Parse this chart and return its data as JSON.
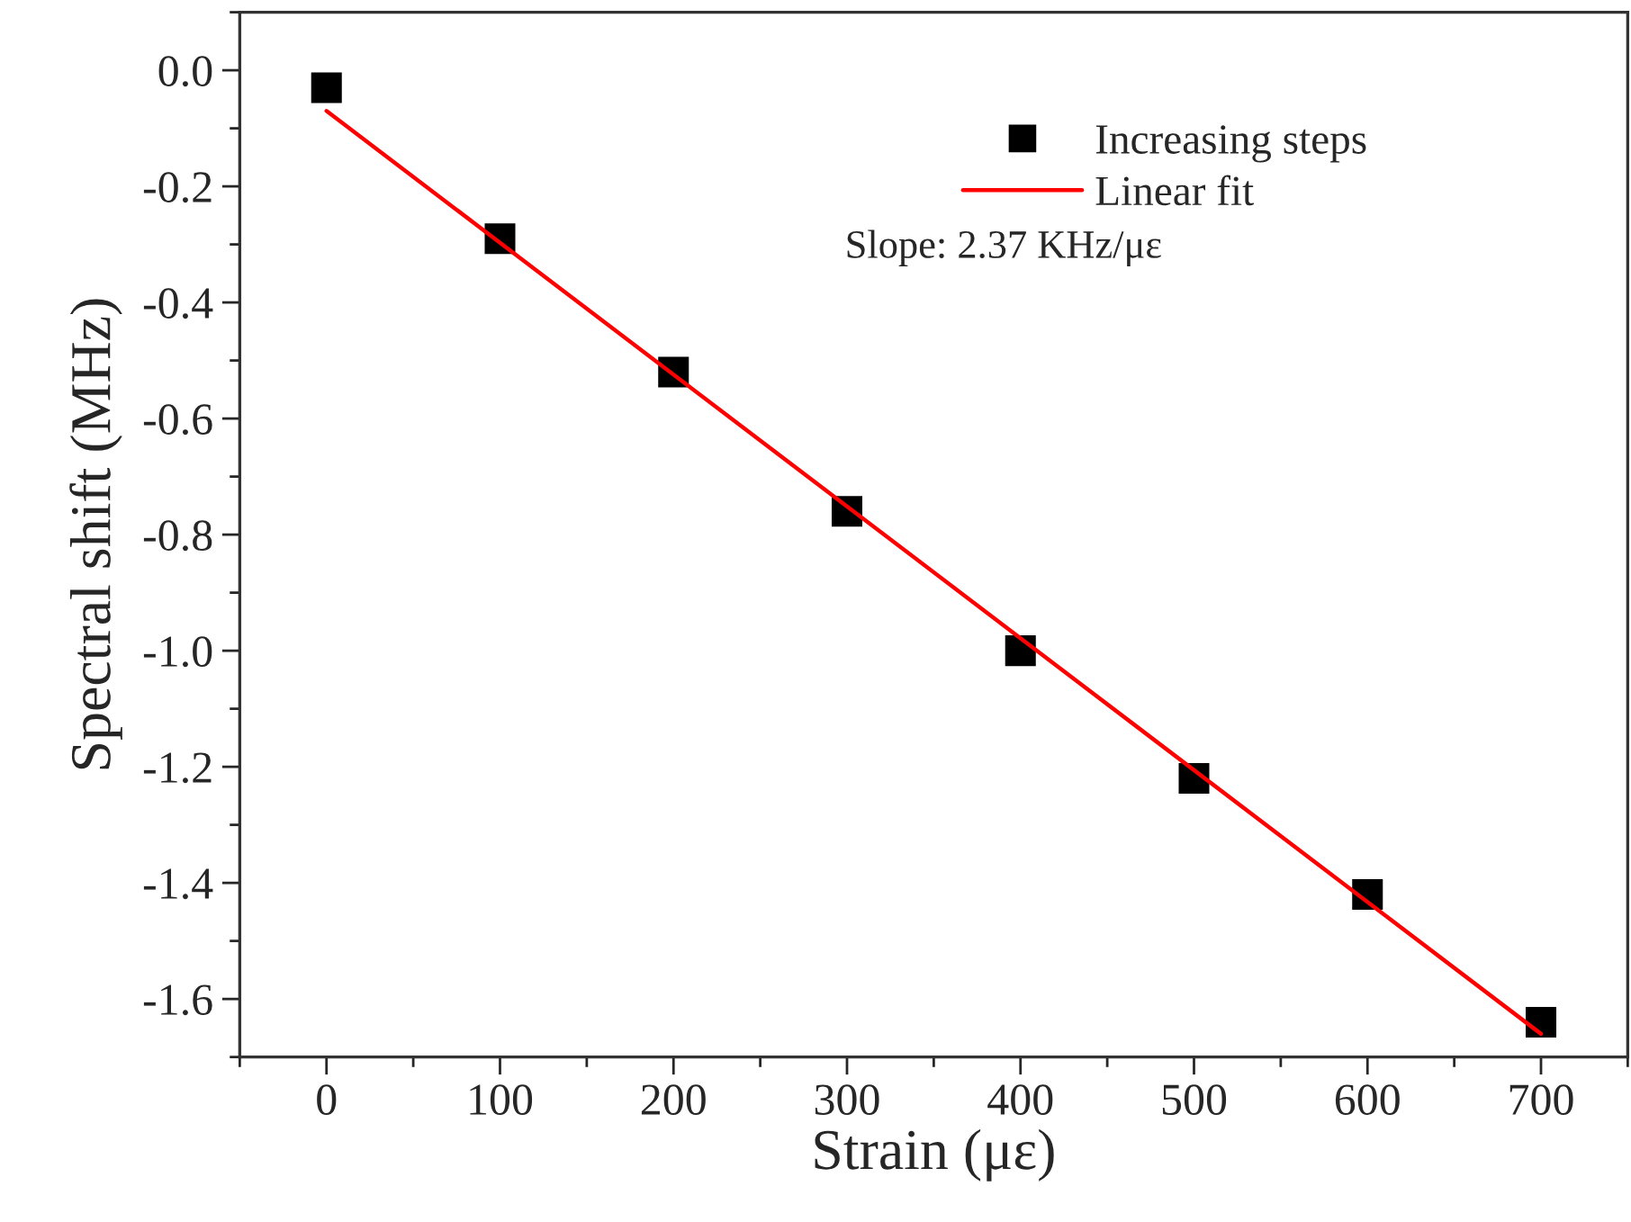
{
  "chart_data": {
    "type": "scatter",
    "xlabel": "Strain (με)",
    "ylabel": "Spectral shift (MHz)",
    "series": [
      {
        "name": "Increasing steps",
        "color": "#000000",
        "marker": "square",
        "x": [
          0,
          100,
          200,
          300,
          400,
          500,
          600,
          700
        ],
        "values": [
          -0.03,
          -0.29,
          -0.52,
          -0.76,
          -1.0,
          -1.22,
          -1.42,
          -1.64
        ]
      },
      {
        "name": "Linear fit",
        "type": "line",
        "color": "#ff0000",
        "marker": "none",
        "line_style": "solid",
        "x": [
          0,
          700
        ],
        "values": [
          -0.07,
          -1.66
        ]
      }
    ],
    "xlim": [
      -50,
      750
    ],
    "xticks": [
      0,
      100,
      200,
      300,
      400,
      500,
      600,
      700
    ],
    "ylim": [
      -1.7,
      0.1
    ],
    "yticks": [
      {
        "value": 0.0,
        "label": "0.0"
      },
      {
        "value": -0.2,
        "label": "-0.2"
      },
      {
        "value": -0.4,
        "label": "-0.4"
      },
      {
        "value": -0.6,
        "label": "-0.6"
      },
      {
        "value": -0.8,
        "label": "-0.8"
      },
      {
        "value": -1.0,
        "label": "-1.0"
      },
      {
        "value": -1.2,
        "label": "-1.2"
      },
      {
        "value": -1.4,
        "label": "-1.4"
      },
      {
        "value": -1.6,
        "label": "-1.6"
      }
    ],
    "annotations": [
      "Slope: 2.37 KHz/με"
    ],
    "legend": "top right",
    "grid": false
  }
}
